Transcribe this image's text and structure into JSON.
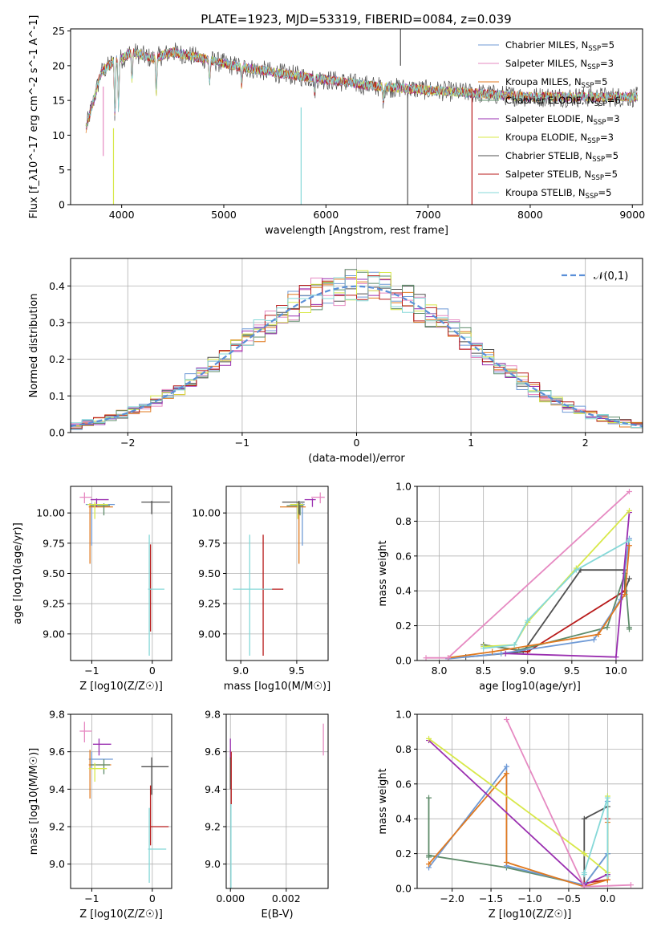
{
  "title": "PLATE=1923, MJD=53319, FIBERID=0084, z=0.039",
  "colors": [
    "#6f9ad6",
    "#e68ac2",
    "#e0791f",
    "#5e8c6a",
    "#9a2fb0",
    "#d8e84a",
    "#505050",
    "#b81a1a",
    "#85d8d8"
  ],
  "legend": [
    "Chabrier MILES, N_SSP=5",
    "Salpeter MILES, N_SSP=3",
    "Kroupa MILES, N_SSP=5",
    "Chabrier ELODIE, N_SSP=6",
    "Salpeter ELODIE, N_SSP=3",
    "Kroupa ELODIE, N_SSP=3",
    "Chabrier STELIB, N_SSP=5",
    "Salpeter STELIB, N_SSP=5",
    "Kroupa STELIB, N_SSP=5"
  ],
  "chart_data": [
    {
      "id": "spectrum",
      "type": "line",
      "title": "PLATE=1923, MJD=53319, FIBERID=0084, z=0.039",
      "xlabel": "wavelength [Angstrom, rest frame]",
      "ylabel": "Flux [f_λ10^-17 erg cm^-2 s^-1 A^-1]",
      "xlim": [
        3500,
        9100
      ],
      "ylim": [
        0,
        25.3
      ],
      "xticks": [
        4000,
        5000,
        6000,
        7000,
        8000,
        9000
      ],
      "yticks": [
        0,
        5,
        10,
        15,
        20,
        25
      ],
      "wavelength_range": [
        3650,
        9050
      ],
      "continuum_x": [
        3650,
        3800,
        3950,
        4000,
        4100,
        4300,
        4500,
        4800,
        5100,
        5500,
        6000,
        6500,
        7000,
        7500,
        8000,
        8500,
        9000
      ],
      "continuum_y": [
        11,
        19,
        21,
        21,
        22,
        21,
        22,
        21,
        20,
        19,
        18,
        17,
        16.5,
        16,
        15.5,
        15.5,
        15.5
      ]
    },
    {
      "id": "residuals",
      "type": "bar",
      "xlabel": "(data-model)/error",
      "ylabel": "Normed distribution",
      "xlim": [
        -2.5,
        2.5
      ],
      "ylim": [
        0,
        0.475
      ],
      "xticks": [
        -2,
        -1,
        0,
        1,
        2
      ],
      "yticks": [
        0,
        0.1,
        0.2,
        0.3,
        0.4
      ],
      "bin_width": 0.1,
      "reference_label": "𝒩(0,1)",
      "reference_mean": 0,
      "reference_sigma": 1
    },
    {
      "id": "age-vs-Z",
      "type": "scatter",
      "xlabel": "Z [log10(Z/Z☉)]",
      "ylabel": "age  [log10(age/yr)]",
      "xlim": [
        -1.35,
        0.32
      ],
      "ylim": [
        8.78,
        10.22
      ],
      "xticks": [
        -1,
        0
      ],
      "yticks": [
        9.0,
        9.25,
        9.5,
        9.75,
        10.0
      ],
      "points": [
        {
          "x": -1.0,
          "y": 10.07,
          "xerr": [
            0.1,
            0.38
          ],
          "yerr": [
            0.34,
            0.01
          ]
        },
        {
          "x": -1.12,
          "y": 10.13,
          "xerr": [
            0.08,
            0.12
          ],
          "yerr": [
            0.05,
            0.04
          ]
        },
        {
          "x": -1.03,
          "y": 10.05,
          "xerr": [
            0.02,
            0.38
          ],
          "yerr": [
            0.47,
            0.03
          ]
        },
        {
          "x": -0.8,
          "y": 10.06,
          "xerr": [
            0.22,
            0.1
          ],
          "yerr": [
            0.08,
            0.02
          ]
        },
        {
          "x": -0.92,
          "y": 10.11,
          "xerr": [
            0.1,
            0.2
          ],
          "yerr": [
            0.06,
            0.01
          ]
        },
        {
          "x": -0.95,
          "y": 10.07,
          "xerr": [
            0.12,
            0.22
          ],
          "yerr": [
            0.12,
            0.02
          ]
        },
        {
          "x": -0.01,
          "y": 10.09,
          "xerr": [
            0.17,
            0.3
          ],
          "yerr": [
            0.1,
            0.01
          ]
        },
        {
          "x": -0.03,
          "y": 9.37,
          "xerr": [
            0.01,
            0.02
          ],
          "yerr": [
            0.35,
            0.37
          ]
        },
        {
          "x": -0.05,
          "y": 9.37,
          "xerr": [
            0.02,
            0.25
          ],
          "yerr": [
            0.55,
            0.45
          ]
        }
      ]
    },
    {
      "id": "age-vs-mass",
      "type": "scatter",
      "xlabel": "mass [log10(M/M☉)]",
      "ylabel": "",
      "xlim": [
        8.87,
        9.78
      ],
      "ylim": [
        8.78,
        10.22
      ],
      "xticks": [
        9.0,
        9.5
      ],
      "yticks": [
        9.0,
        9.25,
        9.5,
        9.75,
        10.0
      ],
      "points": [
        {
          "x": 9.55,
          "y": 10.07,
          "xerr": [
            0.07,
            0.02
          ],
          "yerr": [
            0.34,
            0.01
          ]
        },
        {
          "x": 9.71,
          "y": 10.13,
          "xerr": [
            0.08,
            0.04
          ],
          "yerr": [
            0.05,
            0.04
          ]
        },
        {
          "x": 9.52,
          "y": 10.05,
          "xerr": [
            0.17,
            0.06
          ],
          "yerr": [
            0.47,
            0.03
          ]
        },
        {
          "x": 9.53,
          "y": 10.06,
          "xerr": [
            0.12,
            0.03
          ],
          "yerr": [
            0.08,
            0.02
          ]
        },
        {
          "x": 9.64,
          "y": 10.11,
          "xerr": [
            0.07,
            0.03
          ],
          "yerr": [
            0.06,
            0.01
          ]
        },
        {
          "x": 9.51,
          "y": 10.07,
          "xerr": [
            0.07,
            0.05
          ],
          "yerr": [
            0.12,
            0.02
          ]
        },
        {
          "x": 9.52,
          "y": 10.09,
          "xerr": [
            0.15,
            0.05
          ],
          "yerr": [
            0.1,
            0.01
          ]
        },
        {
          "x": 9.2,
          "y": 9.37,
          "xerr": [
            0.01,
            0.18
          ],
          "yerr": [
            0.55,
            0.45
          ]
        },
        {
          "x": 9.08,
          "y": 9.37,
          "xerr": [
            0.15,
            0.2
          ],
          "yerr": [
            0.55,
            0.45
          ]
        }
      ]
    },
    {
      "id": "weight-vs-age",
      "type": "line",
      "xlabel": "age  [log10(age/yr)]",
      "ylabel": "mass weight",
      "xlim": [
        7.75,
        10.3
      ],
      "ylim": [
        0,
        1.0
      ],
      "xticks": [
        8.0,
        8.5,
        9.0,
        9.5,
        10.0
      ],
      "yticks": [
        0.0,
        0.2,
        0.4,
        0.6,
        0.8,
        1.0
      ],
      "series": [
        {
          "x": [
            8.1,
            8.7,
            9.75,
            10.05,
            10.15
          ],
          "y": [
            0.01,
            0.04,
            0.12,
            0.35,
            0.7
          ]
        },
        {
          "x": [
            7.85,
            8.1,
            10.15
          ],
          "y": [
            0.015,
            0.015,
            0.97
          ]
        },
        {
          "x": [
            8.1,
            8.6,
            9.8,
            10.1,
            10.15
          ],
          "y": [
            0.015,
            0.05,
            0.15,
            0.38,
            0.66
          ]
        },
        {
          "x": [
            8.5,
            8.9,
            9.9,
            10.1,
            10.15,
            10.15
          ],
          "y": [
            0.09,
            0.06,
            0.19,
            0.5,
            0.18,
            0.19
          ]
        },
        {
          "x": [
            8.75,
            10.0,
            10.15
          ],
          "y": [
            0.04,
            0.02,
            0.85
          ]
        },
        {
          "x": [
            8.5,
            8.85,
            9.0,
            9.55,
            10.15
          ],
          "y": [
            0.08,
            0.09,
            0.22,
            0.53,
            0.86
          ]
        },
        {
          "x": [
            8.3,
            8.95,
            9.6,
            10.1,
            10.1,
            10.15
          ],
          "y": [
            0.02,
            0.05,
            0.52,
            0.52,
            0.4,
            0.47
          ]
        },
        {
          "x": [
            8.5,
            9.0,
            10.1
          ],
          "y": [
            0.09,
            0.05,
            0.4
          ]
        },
        {
          "x": [
            8.5,
            8.85,
            9.0,
            9.55,
            10.15
          ],
          "y": [
            0.07,
            0.09,
            0.23,
            0.52,
            0.69
          ]
        }
      ]
    },
    {
      "id": "mass-vs-Z",
      "type": "scatter",
      "xlabel": "Z [log10(Z/Z☉)]",
      "ylabel": "mass [log10(M/M☉)]",
      "xlim": [
        -1.35,
        0.32
      ],
      "ylim": [
        8.87,
        9.8
      ],
      "xticks": [
        -1,
        0
      ],
      "yticks": [
        9.0,
        9.2,
        9.4,
        9.6,
        9.8
      ],
      "points": [
        {
          "x": -1.0,
          "y": 9.56,
          "xerr": [
            0.05,
            0.35
          ],
          "yerr": [
            0.05,
            0.04
          ]
        },
        {
          "x": -1.12,
          "y": 9.71,
          "xerr": [
            0.08,
            0.12
          ],
          "yerr": [
            0.06,
            0.05
          ]
        },
        {
          "x": -1.03,
          "y": 9.53,
          "xerr": [
            0.02,
            0.35
          ],
          "yerr": [
            0.18,
            0.08
          ]
        },
        {
          "x": -0.8,
          "y": 9.53,
          "xerr": [
            0.22,
            0.1
          ],
          "yerr": [
            0.05,
            0.03
          ]
        },
        {
          "x": -0.88,
          "y": 9.64,
          "xerr": [
            0.1,
            0.2
          ],
          "yerr": [
            0.06,
            0.03
          ]
        },
        {
          "x": -0.95,
          "y": 9.51,
          "xerr": [
            0.1,
            0.2
          ],
          "yerr": [
            0.07,
            0.03
          ]
        },
        {
          "x": -0.01,
          "y": 9.52,
          "xerr": [
            0.17,
            0.28
          ],
          "yerr": [
            0.15,
            0.05
          ]
        },
        {
          "x": -0.03,
          "y": 9.2,
          "xerr": [
            0.01,
            0.3
          ],
          "yerr": [
            0.1,
            0.22
          ]
        },
        {
          "x": -0.05,
          "y": 9.08,
          "xerr": [
            0.02,
            0.28
          ],
          "yerr": [
            0.18,
            0.22
          ]
        }
      ]
    },
    {
      "id": "mass-vs-EBV",
      "type": "scatter",
      "xlabel": "E(B-V)",
      "ylabel": "",
      "xlim": [
        -0.00015,
        0.0035
      ],
      "ylim": [
        8.87,
        9.8
      ],
      "xticks": [
        0.0,
        0.002
      ],
      "yticks": [
        9.0,
        9.2,
        9.4,
        9.6,
        9.8
      ],
      "points": [
        {
          "x": 0.0,
          "y": 9.56,
          "xerr": [
            0,
            0
          ],
          "yerr": [
            0.05,
            0.05
          ]
        },
        {
          "x": 0.00333,
          "y": 9.67,
          "xerr": [
            0,
            0
          ],
          "yerr": [
            0.09,
            0.08
          ]
        },
        {
          "x": 0.0,
          "y": 9.53,
          "xerr": [
            0,
            0
          ],
          "yerr": [
            0.08,
            0.08
          ]
        },
        {
          "x": 0.0,
          "y": 9.53,
          "xerr": [
            0,
            0
          ],
          "yerr": [
            0.05,
            0.05
          ]
        },
        {
          "x": 0.0,
          "y": 9.55,
          "xerr": [
            0,
            0
          ],
          "yerr": [
            0.1,
            0.12
          ]
        },
        {
          "x": 0.0,
          "y": 9.51,
          "xerr": [
            0,
            0
          ],
          "yerr": [
            0.07,
            0.05
          ]
        },
        {
          "x": 0.0,
          "y": 9.52,
          "xerr": [
            0,
            0
          ],
          "yerr": [
            0.12,
            0.05
          ]
        },
        {
          "x": 3e-05,
          "y": 9.4,
          "xerr": [
            0,
            0
          ],
          "yerr": [
            0.08,
            0.2
          ]
        },
        {
          "x": 2e-05,
          "y": 9.1,
          "xerr": [
            0,
            0
          ],
          "yerr": [
            0.25,
            0.22
          ]
        }
      ]
    },
    {
      "id": "weight-vs-Z",
      "type": "line",
      "xlabel": "Z [log10(Z/Z☉)]",
      "ylabel": "mass weight",
      "xlim": [
        -2.45,
        0.45
      ],
      "ylim": [
        0,
        1.0
      ],
      "xticks": [
        -2.0,
        -1.5,
        -1.0,
        -0.5,
        0.0
      ],
      "yticks": [
        0.0,
        0.2,
        0.4,
        0.6,
        0.8,
        1.0
      ],
      "series": [
        {
          "x": [
            -2.3,
            -1.3,
            -1.3,
            -0.3,
            0.0,
            0.0
          ],
          "y": [
            0.12,
            0.7,
            0.13,
            0.02,
            0.2,
            0.5
          ]
        },
        {
          "x": [
            -1.3,
            -0.3,
            0.3
          ],
          "y": [
            0.97,
            0.01,
            0.02
          ]
        },
        {
          "x": [
            -2.3,
            -1.3,
            -1.3,
            -0.3,
            0.0,
            0.0
          ],
          "y": [
            0.14,
            0.66,
            0.15,
            0.01,
            0.05,
            0.38
          ]
        },
        {
          "x": [
            -2.3,
            -2.3,
            -2.3,
            -1.3,
            -0.3,
            0.0
          ],
          "y": [
            0.52,
            0.18,
            0.19,
            0.12,
            0.02,
            0.2
          ]
        },
        {
          "x": [
            -2.3,
            -0.3,
            0.0
          ],
          "y": [
            0.85,
            0.02,
            0.08
          ]
        },
        {
          "x": [
            -2.3,
            -0.3,
            0.0,
            0.0
          ],
          "y": [
            0.86,
            0.2,
            0.09,
            0.53
          ]
        },
        {
          "x": [
            -0.3,
            -0.3,
            0.0,
            0.0
          ],
          "y": [
            0.03,
            0.4,
            0.47,
            0.05
          ]
        },
        {
          "x": [
            -0.3,
            0.0,
            0.0
          ],
          "y": [
            0.03,
            0.05,
            0.4
          ]
        },
        {
          "x": [
            -0.3,
            -0.3,
            0.0,
            0.0
          ],
          "y": [
            0.08,
            0.09,
            0.52,
            0.07
          ]
        }
      ]
    }
  ]
}
